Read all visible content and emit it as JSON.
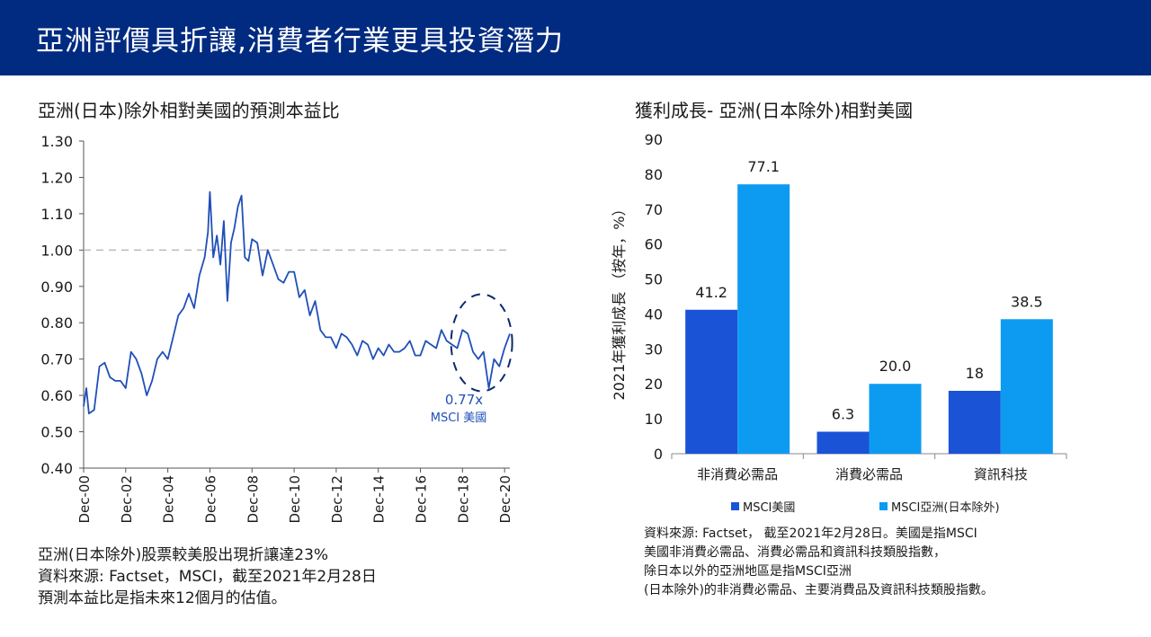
{
  "banner": {
    "title": "亞洲評價具折讓,消費者行業更具投資潛力"
  },
  "colors": {
    "banner": "#002b80",
    "line": "#1f4fb8",
    "series1": "#1a53d6",
    "series2": "#0d9bf2",
    "reference": "#bbbbbb"
  },
  "left": {
    "title": "亞洲(日本)除外相對美國的預測本益比",
    "annotation": {
      "value": "0.77x",
      "label": "MSCI 美國"
    },
    "notes": [
      "亞洲(日本除外)股票較美股出現折讓達23%",
      "資料來源: Factset，MSCI，截至2021年2月28日",
      "預測本益比是指未來12個月的估值。"
    ]
  },
  "right": {
    "title": "獲利成長- 亞洲(日本除外)相對美國",
    "notes": [
      "資料來源: Factset， 截至2021年2月28日。美國是指MSCI",
      "美國非消費必需品、消費必需品和資訊科技類股指數，",
      "除日本以外的亞洲地區是指MSCI亞洲",
      "(日本除外)的非消費必需品、主要消費品及資訊科技類股指數。"
    ]
  },
  "chart_data": [
    {
      "type": "line",
      "title": "亞洲(日本)除外相對美國的預測本益比",
      "ylim": [
        0.4,
        1.3
      ],
      "y_ticks": [
        "0.40",
        "0.50",
        "0.60",
        "0.70",
        "0.80",
        "0.90",
        "1.00",
        "1.10",
        "1.20",
        "1.30"
      ],
      "x_ticks": [
        "Dec-00",
        "Dec-02",
        "Dec-04",
        "Dec-06",
        "Dec-08",
        "Dec-10",
        "Dec-12",
        "Dec-14",
        "Dec-16",
        "Dec-18",
        "Dec-20"
      ],
      "xlim": [
        2000.92,
        2021.17
      ],
      "reference_line": 1.0,
      "series": [
        {
          "x": [
            2000.92,
            2001.05,
            2001.17,
            2001.42,
            2001.67,
            2001.92,
            2002.17,
            2002.42,
            2002.67,
            2002.92,
            2003.17,
            2003.42,
            2003.67,
            2003.92,
            2004.17,
            2004.42,
            2004.67,
            2004.92,
            2005.17,
            2005.42,
            2005.67,
            2005.92,
            2006.17,
            2006.42,
            2006.67,
            2006.83,
            2006.92,
            2007.08,
            2007.25,
            2007.42,
            2007.58,
            2007.75,
            2007.92,
            2008.08,
            2008.25,
            2008.42,
            2008.58,
            2008.75,
            2008.92,
            2009.17,
            2009.42,
            2009.67,
            2009.92,
            2010.17,
            2010.42,
            2010.67,
            2010.92,
            2011.17,
            2011.42,
            2011.67,
            2011.92,
            2012.17,
            2012.42,
            2012.67,
            2012.92,
            2013.17,
            2013.42,
            2013.67,
            2013.92,
            2014.17,
            2014.42,
            2014.67,
            2014.92,
            2015.17,
            2015.42,
            2015.67,
            2015.92,
            2016.17,
            2016.42,
            2016.67,
            2016.92,
            2017.17,
            2017.42,
            2017.67,
            2017.92,
            2018.17,
            2018.42,
            2018.67,
            2018.92,
            2019.17,
            2019.42,
            2019.67,
            2019.92,
            2020.17,
            2020.42,
            2020.67,
            2020.92,
            2021.17
          ],
          "y": [
            0.57,
            0.62,
            0.55,
            0.56,
            0.68,
            0.69,
            0.65,
            0.64,
            0.64,
            0.62,
            0.72,
            0.7,
            0.66,
            0.6,
            0.64,
            0.7,
            0.72,
            0.7,
            0.76,
            0.82,
            0.84,
            0.88,
            0.84,
            0.93,
            0.98,
            1.05,
            1.16,
            0.98,
            1.04,
            0.96,
            1.08,
            0.86,
            1.02,
            1.06,
            1.12,
            1.15,
            0.98,
            0.97,
            1.03,
            1.02,
            0.93,
            1.0,
            0.96,
            0.92,
            0.91,
            0.94,
            0.94,
            0.87,
            0.89,
            0.82,
            0.86,
            0.78,
            0.76,
            0.76,
            0.73,
            0.77,
            0.76,
            0.74,
            0.71,
            0.75,
            0.74,
            0.7,
            0.73,
            0.71,
            0.74,
            0.72,
            0.72,
            0.73,
            0.75,
            0.71,
            0.71,
            0.75,
            0.74,
            0.73,
            0.78,
            0.75,
            0.74,
            0.73,
            0.78,
            0.77,
            0.72,
            0.7,
            0.72,
            0.62,
            0.7,
            0.68,
            0.73,
            0.77
          ]
        }
      ]
    },
    {
      "type": "bar",
      "title": "獲利成長- 亞洲(日本除外)相對美國",
      "ylabel": "2021年獲利成長 （按年，%）",
      "ylim": [
        0,
        90
      ],
      "y_ticks": [
        "0",
        "10",
        "20",
        "30",
        "40",
        "50",
        "60",
        "70",
        "80",
        "90"
      ],
      "categories": [
        "非消費必需品",
        "消費必需品",
        "資訊科技"
      ],
      "legend_position": "bottom",
      "series": [
        {
          "name": "MSCI美國",
          "values": [
            41.2,
            6.3,
            18
          ],
          "labels": [
            "41.2",
            "6.3",
            "18"
          ]
        },
        {
          "name": "MSCI亞洲(日本除外)",
          "values": [
            77.1,
            20.0,
            38.5
          ],
          "labels": [
            "77.1",
            "20.0",
            "38.5"
          ]
        }
      ]
    }
  ]
}
